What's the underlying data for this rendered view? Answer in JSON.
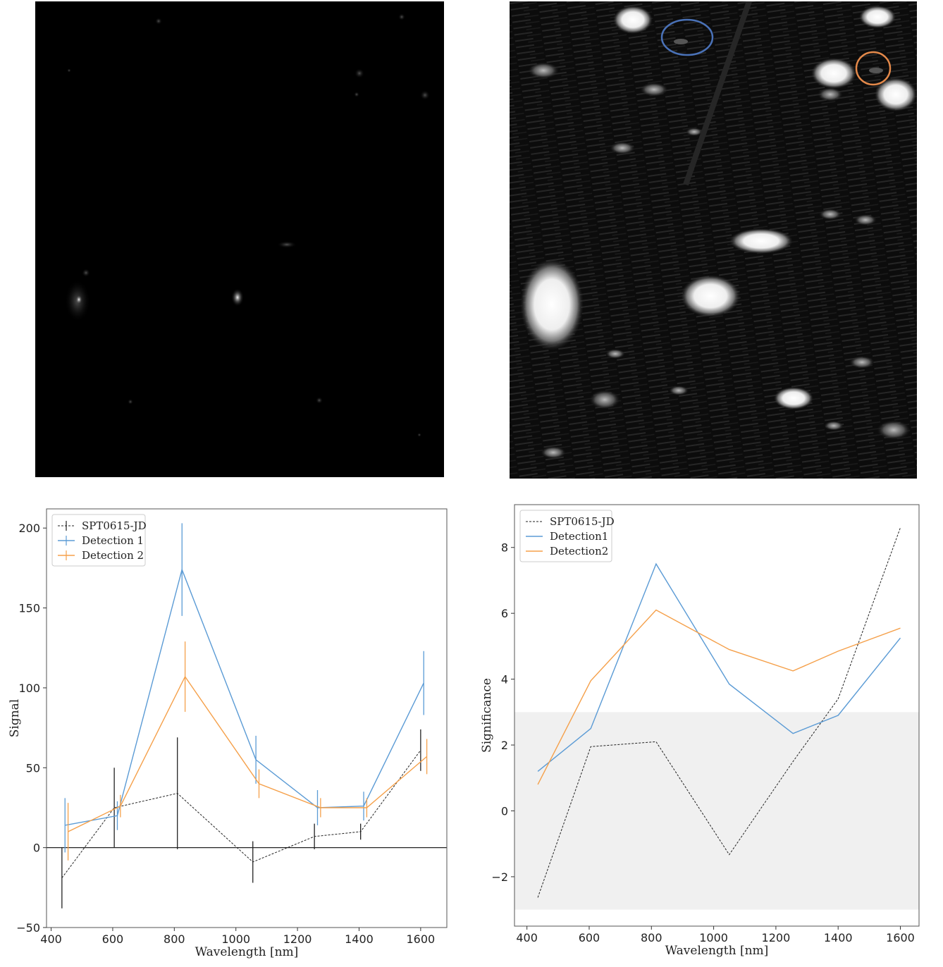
{
  "colors": {
    "blue": "#5b9bd5",
    "orange": "#f5a04a",
    "black": "#222222",
    "band": "#f0f0f0"
  },
  "chart_data": [
    {
      "type": "line",
      "xlabel": "Wavelength [nm]",
      "ylabel": "Signal",
      "xlim": [
        385,
        1685
      ],
      "ylim": [
        -50,
        212
      ],
      "xticks": [
        400,
        600,
        800,
        1000,
        1200,
        1400,
        1600
      ],
      "yticks": [
        -50,
        0,
        50,
        100,
        150,
        200
      ],
      "zero_line": true,
      "legend": "top-left",
      "series": [
        {
          "name": "SPT0615-JD",
          "style": "dashed",
          "color": "#222222",
          "x": [
            435,
            605,
            810,
            1055,
            1255,
            1405,
            1600
          ],
          "y": [
            -19,
            25,
            34,
            -9,
            7,
            10,
            61
          ],
          "err": [
            19,
            25,
            35,
            13,
            8,
            5,
            13
          ]
        },
        {
          "name": "Detection 1",
          "style": "solid",
          "color": "#5b9bd5",
          "x": [
            445,
            615,
            825,
            1065,
            1265,
            1415,
            1610
          ],
          "y": [
            14,
            20,
            174,
            55,
            25,
            26,
            103
          ],
          "err": [
            17,
            9,
            29,
            15,
            11,
            9,
            20
          ]
        },
        {
          "name": "Detection 2",
          "style": "solid",
          "color": "#f5a04a",
          "x": [
            455,
            625,
            835,
            1075,
            1275,
            1425,
            1620
          ],
          "y": [
            10,
            26,
            107,
            40,
            25,
            25,
            57
          ],
          "err": [
            18,
            7,
            22,
            9,
            6,
            6,
            11
          ]
        }
      ]
    },
    {
      "type": "line",
      "xlabel": "Wavelength [nm]",
      "ylabel": "Significance",
      "xlim": [
        360,
        1660
      ],
      "ylim": [
        -3.5,
        9.3
      ],
      "xticks": [
        400,
        600,
        800,
        1000,
        1200,
        1400,
        1600
      ],
      "yticks": [
        -2,
        0,
        2,
        4,
        6,
        8
      ],
      "band": [
        -3,
        3
      ],
      "legend": "top-left",
      "series": [
        {
          "name": "SPT0615-JD",
          "style": "dashed",
          "color": "#222222",
          "x": [
            435,
            605,
            815,
            1050,
            1255,
            1400,
            1600
          ],
          "y": [
            -2.63,
            1.95,
            2.1,
            -1.33,
            1.5,
            3.4,
            8.6
          ]
        },
        {
          "name": "Detection1",
          "style": "solid",
          "color": "#5b9bd5",
          "x": [
            435,
            605,
            815,
            1050,
            1255,
            1400,
            1600
          ],
          "y": [
            1.2,
            2.5,
            7.5,
            3.85,
            2.35,
            2.9,
            5.25
          ]
        },
        {
          "name": "Detection2",
          "style": "solid",
          "color": "#f5a04a",
          "x": [
            435,
            605,
            815,
            1050,
            1255,
            1400,
            1600
          ],
          "y": [
            0.8,
            3.95,
            6.1,
            4.9,
            4.25,
            4.85,
            5.55
          ]
        }
      ]
    }
  ]
}
